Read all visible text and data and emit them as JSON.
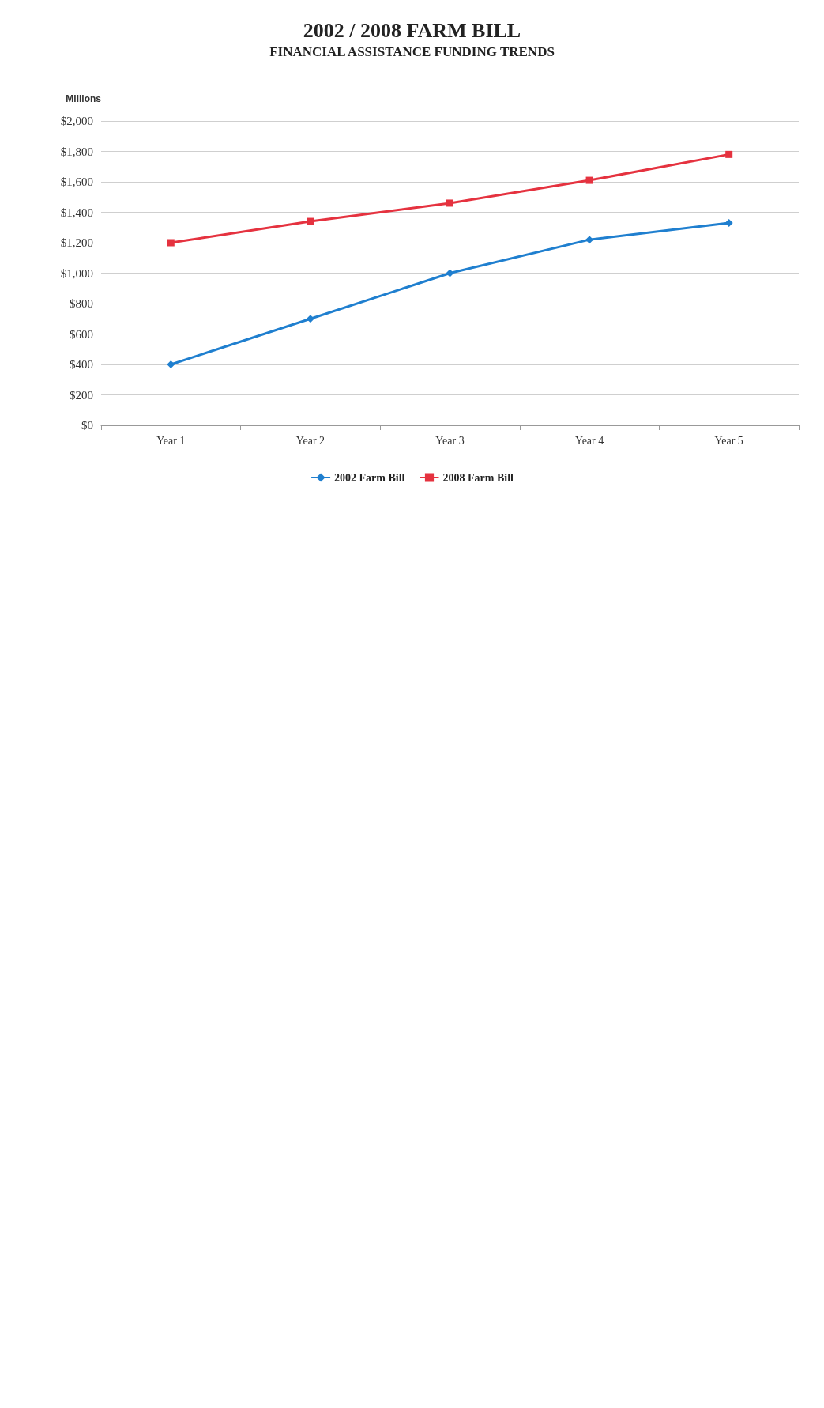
{
  "chart_data": {
    "type": "line",
    "title": "2002 / 2008 FARM BILL",
    "subtitle": "FINANCIAL ASSISTANCE FUNDING TRENDS",
    "ylabel": "Millions",
    "categories": [
      "Year 1",
      "Year 2",
      "Year 3",
      "Year 4",
      "Year 5"
    ],
    "series": [
      {
        "name": "2002 Farm Bill",
        "color": "#1f7fcf",
        "marker": "diamond",
        "values": [
          400,
          700,
          1000,
          1220,
          1330
        ]
      },
      {
        "name": "2008 Farm Bill",
        "color": "#e5323f",
        "marker": "square",
        "values": [
          1200,
          1340,
          1460,
          1610,
          1780
        ]
      }
    ],
    "ylim": [
      0,
      2000
    ],
    "yticks": [
      {
        "value": 0,
        "label": "$0"
      },
      {
        "value": 200,
        "label": "$200"
      },
      {
        "value": 400,
        "label": "$400"
      },
      {
        "value": 600,
        "label": "$600"
      },
      {
        "value": 800,
        "label": "$800"
      },
      {
        "value": 1000,
        "label": "$1,000"
      },
      {
        "value": 1200,
        "label": "$1,200"
      },
      {
        "value": 1400,
        "label": "$1,400"
      },
      {
        "value": 1600,
        "label": "$1,600"
      },
      {
        "value": 1800,
        "label": "$1,800"
      },
      {
        "value": 2000,
        "label": "$2,000"
      }
    ],
    "grid": "y",
    "legend": "bottom"
  }
}
